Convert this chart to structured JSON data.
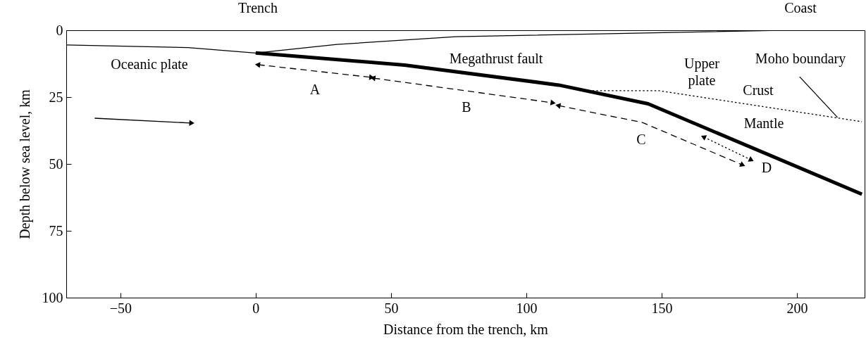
{
  "chart_data": {
    "type": "line",
    "xlabel": "Distance from the trench, km",
    "ylabel": "Depth below sea level, km",
    "xlim": [
      -70,
      225
    ],
    "ylim": [
      100,
      0
    ],
    "xticks": [
      -50,
      0,
      50,
      100,
      150,
      200
    ],
    "yticks": [
      0,
      25,
      50,
      75,
      100
    ],
    "grid": false,
    "series": [
      {
        "color": "#000000",
        "line_style": "solid",
        "x": [
          -70,
          -25,
          0,
          30,
          74,
          194
        ],
        "values": [
          5.5,
          6.5,
          8.5,
          5.3,
          2.4,
          0
        ]
      },
      {
        "color": "#000000",
        "line_style": "solid",
        "x": [
          0,
          55,
          112,
          145,
          224
        ],
        "values": [
          8.5,
          13,
          20.5,
          27.5,
          61.3
        ]
      },
      {
        "color": "#000000",
        "line_style": "dotted",
        "x": [
          123,
          149,
          224
        ],
        "values": [
          22.6,
          22.6,
          34.2
        ]
      },
      {
        "color": "#000000",
        "line_style": "dashed",
        "marker": "triangle",
        "x": [
          1,
          42.6
        ],
        "values": [
          12.9,
          17.6
        ]
      },
      {
        "color": "#000000",
        "line_style": "dashed",
        "marker": "triangle",
        "x": [
          43.6,
          109.6
        ],
        "values": [
          17.9,
          27.1
        ]
      },
      {
        "color": "#000000",
        "line_style": "dashed",
        "marker": "triangle",
        "x": [
          112,
          142.9,
          179.7
        ],
        "values": [
          28.2,
          34.5,
          50.3
        ]
      },
      {
        "color": "#000000",
        "line_style": "dotted",
        "marker": "triangle",
        "x": [
          165.7,
          182.9
        ],
        "values": [
          40,
          48.4
        ]
      },
      {
        "color": "#000000",
        "line_style": "solid",
        "marker": "triangle",
        "x": [
          -59.5,
          -23.9
        ],
        "values": [
          32.9,
          34.7
        ]
      },
      {
        "color": "#000000",
        "line_style": "solid",
        "x": [
          201,
          215
        ],
        "values": [
          17.4,
          32.6
        ]
      }
    ],
    "annotations": [
      "Trench",
      "Coast",
      "Oceanic plate",
      "Megathrust fault",
      "Upper\nplate",
      "Moho boundary",
      "Crust",
      "Mantle",
      "A",
      "B",
      "C",
      "D"
    ]
  }
}
